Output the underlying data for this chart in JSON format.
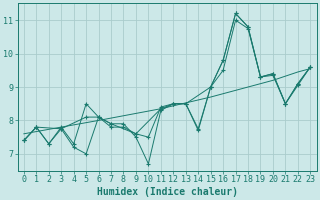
{
  "xlabel": "Humidex (Indice chaleur)",
  "xlim": [
    -0.5,
    23.5
  ],
  "ylim": [
    6.5,
    11.5
  ],
  "yticks": [
    7,
    8,
    9,
    10,
    11
  ],
  "xticks": [
    0,
    1,
    2,
    3,
    4,
    5,
    6,
    7,
    8,
    9,
    10,
    11,
    12,
    13,
    14,
    15,
    16,
    17,
    18,
    19,
    20,
    21,
    22,
    23
  ],
  "bg_color": "#cce8e8",
  "grid_color": "#aacccc",
  "line_color": "#1a7a6e",
  "lines": [
    {
      "x": [
        0,
        1,
        2,
        3,
        4,
        5,
        6,
        7,
        8,
        9,
        10,
        11,
        12,
        13,
        14,
        15,
        16,
        17,
        18,
        19,
        20,
        21,
        22,
        23
      ],
      "y": [
        7.4,
        7.8,
        7.3,
        7.8,
        7.3,
        8.5,
        8.1,
        7.8,
        7.8,
        7.6,
        7.5,
        8.4,
        8.5,
        8.5,
        7.7,
        9.0,
        9.8,
        11.2,
        10.8,
        9.3,
        9.4,
        8.5,
        9.1,
        9.6
      ],
      "marker": true
    },
    {
      "x": [
        0,
        1,
        2,
        3,
        4,
        5,
        6,
        7,
        8,
        9,
        10,
        11,
        12,
        13,
        14,
        15,
        16,
        17,
        18,
        19,
        20,
        21,
        22,
        23
      ],
      "y": [
        7.4,
        7.8,
        7.3,
        7.75,
        7.2,
        7.0,
        8.1,
        7.9,
        7.9,
        7.5,
        6.7,
        8.3,
        8.5,
        8.5,
        7.75,
        9.0,
        9.8,
        11.2,
        10.8,
        9.3,
        9.4,
        8.5,
        9.1,
        9.6
      ],
      "marker": true
    },
    {
      "x": [
        0,
        1,
        3,
        5,
        6,
        7,
        9,
        11,
        12,
        13,
        15,
        16,
        17,
        18,
        19,
        20,
        21,
        22,
        23
      ],
      "y": [
        7.4,
        7.8,
        7.75,
        8.1,
        8.1,
        7.9,
        7.6,
        8.35,
        8.5,
        8.5,
        9.0,
        9.5,
        11.0,
        10.75,
        9.3,
        9.35,
        8.5,
        9.05,
        9.6
      ],
      "marker": true
    },
    {
      "x": [
        0,
        6,
        11,
        15,
        19,
        20,
        22,
        23
      ],
      "y": [
        7.6,
        8.0,
        8.35,
        8.7,
        9.1,
        9.2,
        9.45,
        9.55
      ],
      "marker": false
    }
  ],
  "tickfont_size": 6,
  "labelfont_size": 7
}
